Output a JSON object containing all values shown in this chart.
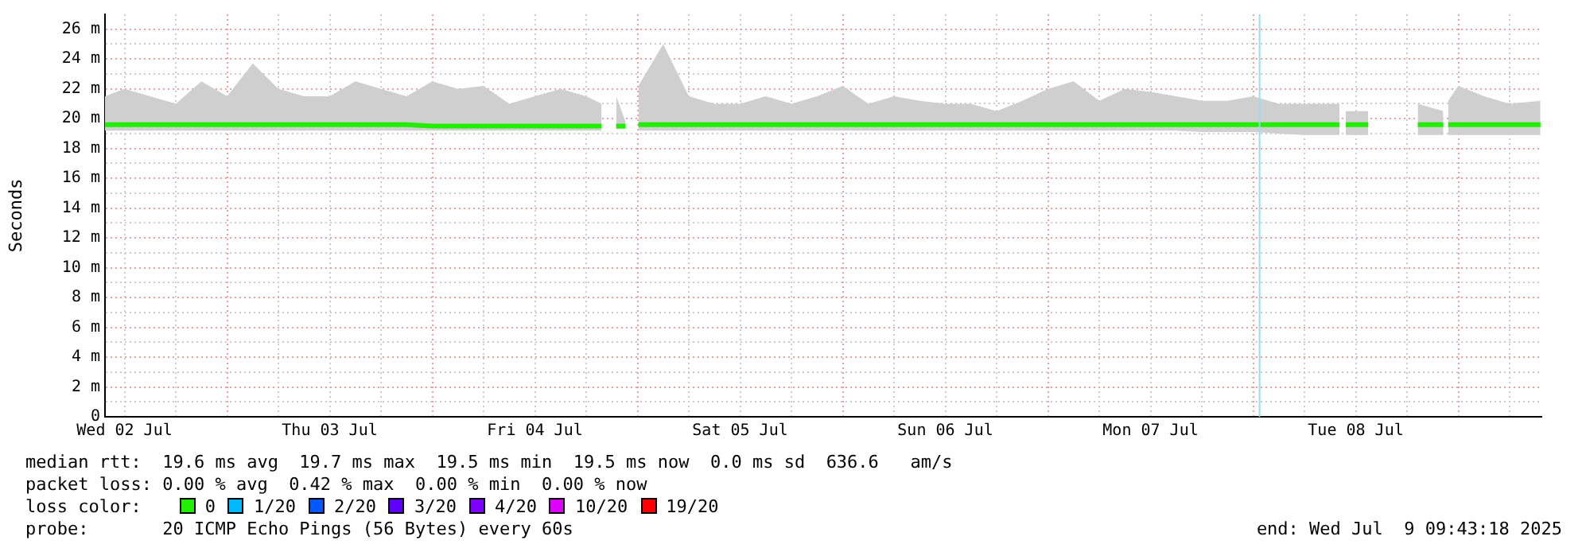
{
  "chart_data": {
    "type": "line",
    "ylabel": "Seconds",
    "x": [
      "2025-07-02T09:43",
      "2025-07-02T12:00",
      "2025-07-02T15:00",
      "2025-07-02T18:00",
      "2025-07-02T21:00",
      "2025-07-03T00:00",
      "2025-07-03T03:00",
      "2025-07-03T06:00",
      "2025-07-03T09:00",
      "2025-07-03T12:00",
      "2025-07-03T15:00",
      "2025-07-03T18:00",
      "2025-07-03T21:00",
      "2025-07-04T00:00",
      "2025-07-04T03:00",
      "2025-07-04T06:00",
      "2025-07-04T09:00",
      "2025-07-04T12:00",
      "2025-07-04T15:00",
      "2025-07-04T18:00",
      "2025-07-04T19:48",
      "2025-07-04T20:40",
      "2025-07-04T21:30",
      "2025-07-04T22:36",
      "2025-07-04T23:20",
      "2025-07-05T00:06",
      "2025-07-05T03:00",
      "2025-07-05T06:00",
      "2025-07-05T09:00",
      "2025-07-05T12:00",
      "2025-07-05T15:00",
      "2025-07-05T18:00",
      "2025-07-05T21:00",
      "2025-07-06T00:00",
      "2025-07-06T03:00",
      "2025-07-06T06:00",
      "2025-07-06T09:00",
      "2025-07-06T12:00",
      "2025-07-06T15:00",
      "2025-07-06T18:00",
      "2025-07-06T21:00",
      "2025-07-07T00:00",
      "2025-07-07T03:00",
      "2025-07-07T06:00",
      "2025-07-07T09:00",
      "2025-07-07T12:00",
      "2025-07-07T15:00",
      "2025-07-07T18:00",
      "2025-07-07T21:00",
      "2025-07-08T00:00",
      "2025-07-08T03:00",
      "2025-07-08T06:00",
      "2025-07-08T09:00",
      "2025-07-08T10:06",
      "2025-07-08T10:28",
      "2025-07-08T10:50",
      "2025-07-08T13:27",
      "2025-07-08T16:00",
      "2025-07-08T19:15",
      "2025-07-08T22:14",
      "2025-07-08T22:30",
      "2025-07-08T22:48",
      "2025-07-09T00:00",
      "2025-07-09T03:00",
      "2025-07-09T06:00",
      "2025-07-09T09:36"
    ],
    "series": [
      {
        "name": "0",
        "color": "#22ee00",
        "values": [
          19.6,
          19.6,
          19.6,
          19.6,
          19.6,
          19.6,
          19.6,
          19.6,
          19.6,
          19.6,
          19.6,
          19.6,
          19.6,
          19.5,
          19.5,
          19.5,
          19.5,
          19.5,
          19.5,
          19.5,
          19.5,
          null,
          19.5,
          19.5,
          null,
          19.6,
          19.6,
          19.6,
          19.6,
          19.6,
          19.6,
          19.6,
          19.6,
          19.6,
          19.6,
          19.6,
          19.6,
          19.6,
          19.6,
          19.6,
          19.6,
          19.6,
          19.6,
          19.6,
          19.6,
          19.6,
          19.6,
          19.6,
          19.6,
          19.6,
          19.6,
          19.6,
          19.6,
          19.6,
          null,
          19.6,
          19.6,
          null,
          19.6,
          19.6,
          null,
          19.6,
          19.6,
          19.6,
          19.6,
          19.6
        ],
        "lower": [
          19.2,
          19.2,
          19.2,
          19.2,
          19.2,
          19.2,
          19.2,
          19.2,
          19.2,
          19.2,
          19.2,
          19.2,
          19.2,
          19.2,
          19.2,
          19.2,
          19.2,
          19.2,
          19.2,
          19.2,
          19.2,
          null,
          19.3,
          19.3,
          null,
          19.2,
          19.2,
          19.2,
          19.2,
          19.2,
          19.2,
          19.2,
          19.2,
          19.2,
          19.2,
          19.2,
          19.2,
          19.2,
          19.2,
          19.2,
          19.2,
          19.2,
          19.2,
          19.2,
          19.2,
          19.2,
          19.2,
          19.1,
          19.1,
          19.1,
          19,
          18.9,
          18.9,
          18.9,
          null,
          18.9,
          18.9,
          null,
          18.9,
          18.9,
          null,
          18.9,
          18.9,
          18.9,
          18.9,
          18.9
        ],
        "upper": [
          21.5,
          22,
          21.5,
          21,
          22.5,
          21.5,
          23.7,
          22,
          21.5,
          21.5,
          22.5,
          22,
          21.5,
          22.5,
          22,
          22.2,
          21,
          21.5,
          22,
          21.5,
          21,
          null,
          21.5,
          19.8,
          null,
          22.2,
          25,
          21.5,
          21,
          21,
          21.5,
          21,
          21.5,
          22.2,
          21,
          21.5,
          21.2,
          21,
          21,
          20.5,
          21.2,
          22,
          22.5,
          21.2,
          22,
          21.8,
          21.5,
          21.2,
          21.2,
          21.5,
          21,
          21,
          21,
          21,
          null,
          20.5,
          20.5,
          null,
          21,
          20.5,
          null,
          21.2,
          22.2,
          21.5,
          21,
          21.2
        ]
      },
      {
        "name": "1/20",
        "color": "#00b8ff",
        "values": [
          null,
          null,
          null,
          null,
          null,
          null,
          null,
          null,
          null,
          null,
          null,
          null,
          null,
          null,
          null,
          null,
          null,
          null,
          null,
          null,
          null,
          null,
          null,
          null,
          null,
          null,
          null,
          null,
          null,
          null,
          null,
          null,
          null,
          null,
          null,
          null,
          null,
          null,
          null,
          null,
          null,
          null,
          null,
          null,
          null,
          null,
          null,
          null,
          null,
          null,
          null,
          null,
          null,
          null,
          null,
          null,
          null,
          null,
          null,
          null,
          null,
          null,
          null,
          null,
          null,
          null
        ]
      },
      {
        "name": "2/20",
        "color": "#0059ff",
        "values": [
          null,
          null,
          null,
          null,
          null,
          null,
          null,
          null,
          null,
          null,
          null,
          null,
          null,
          null,
          null,
          null,
          null,
          null,
          null,
          null,
          null,
          null,
          null,
          null,
          null,
          null,
          null,
          null,
          null,
          null,
          null,
          null,
          null,
          null,
          null,
          null,
          null,
          null,
          null,
          null,
          null,
          null,
          null,
          null,
          null,
          null,
          null,
          null,
          null,
          null,
          null,
          null,
          null,
          null,
          null,
          null,
          null,
          null,
          null,
          null,
          null,
          null,
          null,
          null,
          null,
          null
        ]
      },
      {
        "name": "3/20",
        "color": "#5e00ff",
        "values": [
          null,
          null,
          null,
          null,
          null,
          null,
          null,
          null,
          null,
          null,
          null,
          null,
          null,
          null,
          null,
          null,
          null,
          null,
          null,
          null,
          null,
          null,
          null,
          null,
          null,
          null,
          null,
          null,
          null,
          null,
          null,
          null,
          null,
          null,
          null,
          null,
          null,
          null,
          null,
          null,
          null,
          null,
          null,
          null,
          null,
          null,
          null,
          null,
          null,
          null,
          null,
          null,
          null,
          null,
          null,
          null,
          null,
          null,
          null,
          null,
          null,
          null,
          null,
          null,
          null,
          null
        ]
      },
      {
        "name": "4/20",
        "color": "#7e00ff",
        "values": [
          null,
          null,
          null,
          null,
          null,
          null,
          null,
          null,
          null,
          null,
          null,
          null,
          null,
          null,
          null,
          null,
          null,
          null,
          null,
          null,
          null,
          null,
          null,
          null,
          null,
          null,
          null,
          null,
          null,
          null,
          null,
          null,
          null,
          null,
          null,
          null,
          null,
          null,
          null,
          null,
          null,
          null,
          null,
          null,
          null,
          null,
          null,
          null,
          null,
          null,
          null,
          null,
          null,
          null,
          null,
          null,
          null,
          null,
          null,
          null,
          null,
          null,
          null,
          null,
          null,
          null
        ]
      },
      {
        "name": "10/20",
        "color": "#dd00ff",
        "values": [
          null,
          null,
          null,
          null,
          null,
          null,
          null,
          null,
          null,
          null,
          null,
          null,
          null,
          null,
          null,
          null,
          null,
          null,
          null,
          null,
          null,
          null,
          null,
          null,
          null,
          null,
          null,
          null,
          null,
          null,
          null,
          null,
          null,
          null,
          null,
          null,
          null,
          null,
          null,
          null,
          null,
          null,
          null,
          null,
          null,
          null,
          null,
          null,
          null,
          null,
          null,
          null,
          null,
          null,
          null,
          null,
          null,
          null,
          null,
          null,
          null,
          null,
          null,
          null,
          null,
          null
        ]
      },
      {
        "name": "19/20",
        "color": "#ff0000",
        "values": [
          null,
          null,
          null,
          null,
          null,
          null,
          null,
          null,
          null,
          null,
          null,
          null,
          null,
          null,
          null,
          null,
          null,
          null,
          null,
          null,
          null,
          null,
          null,
          null,
          null,
          null,
          null,
          null,
          null,
          null,
          null,
          null,
          null,
          null,
          null,
          null,
          null,
          null,
          null,
          null,
          null,
          null,
          null,
          null,
          null,
          null,
          null,
          null,
          null,
          null,
          null,
          null,
          null,
          null,
          null,
          null,
          null,
          null,
          null,
          null,
          null,
          null,
          null,
          null,
          null,
          null
        ]
      }
    ],
    "xlim": [
      "2025-07-02T09:43",
      "2025-07-09T09:43"
    ],
    "xticks": [
      {
        "value": "2025-07-02T12:00",
        "label": "Wed 02 Jul"
      },
      {
        "value": "2025-07-02T18:00",
        "label": null
      },
      {
        "value": "2025-07-03T00:00",
        "label": null
      },
      {
        "value": "2025-07-03T06:00",
        "label": null
      },
      {
        "value": "2025-07-03T12:00",
        "label": "Thu 03 Jul"
      },
      {
        "value": "2025-07-03T18:00",
        "label": null
      },
      {
        "value": "2025-07-04T00:00",
        "label": null
      },
      {
        "value": "2025-07-04T06:00",
        "label": null
      },
      {
        "value": "2025-07-04T12:00",
        "label": "Fri 04 Jul"
      },
      {
        "value": "2025-07-04T18:00",
        "label": null
      },
      {
        "value": "2025-07-05T00:00",
        "label": null
      },
      {
        "value": "2025-07-05T06:00",
        "label": null
      },
      {
        "value": "2025-07-05T12:00",
        "label": "Sat 05 Jul"
      },
      {
        "value": "2025-07-05T18:00",
        "label": null
      },
      {
        "value": "2025-07-06T00:00",
        "label": null
      },
      {
        "value": "2025-07-06T06:00",
        "label": null
      },
      {
        "value": "2025-07-06T12:00",
        "label": "Sun 06 Jul"
      },
      {
        "value": "2025-07-06T18:00",
        "label": null
      },
      {
        "value": "2025-07-07T00:00",
        "label": null
      },
      {
        "value": "2025-07-07T06:00",
        "label": null
      },
      {
        "value": "2025-07-07T12:00",
        "label": "Mon 07 Jul"
      },
      {
        "value": "2025-07-07T18:00",
        "label": null
      },
      {
        "value": "2025-07-08T00:00",
        "label": null
      },
      {
        "value": "2025-07-08T06:00",
        "label": null
      },
      {
        "value": "2025-07-08T12:00",
        "label": "Tue 08 Jul"
      },
      {
        "value": "2025-07-08T18:00",
        "label": null
      },
      {
        "value": "2025-07-09T00:00",
        "label": null
      },
      {
        "value": "2025-07-09T06:00",
        "label": null
      }
    ],
    "ylim": [
      0,
      27
    ],
    "yticks": [
      0,
      {
        "value": 1,
        "label": null
      },
      {
        "value": 2,
        "label": "2 m"
      },
      {
        "value": 3,
        "label": null
      },
      {
        "value": 4,
        "label": "4 m"
      },
      {
        "value": 5,
        "label": null
      },
      {
        "value": 6,
        "label": "6 m"
      },
      {
        "value": 7,
        "label": null
      },
      {
        "value": 8,
        "label": "8 m"
      },
      {
        "value": 9,
        "label": null
      },
      {
        "value": 10,
        "label": "10 m"
      },
      {
        "value": 11,
        "label": null
      },
      {
        "value": 12,
        "label": "12 m"
      },
      {
        "value": 13,
        "label": null
      },
      {
        "value": 14,
        "label": "14 m"
      },
      {
        "value": 15,
        "label": null
      },
      {
        "value": 16,
        "label": "16 m"
      },
      {
        "value": 17,
        "label": null
      },
      {
        "value": 18,
        "label": "18 m"
      },
      {
        "value": 19,
        "label": null
      },
      {
        "value": 20,
        "label": "20 m"
      },
      {
        "value": 21,
        "label": null
      },
      {
        "value": 22,
        "label": "22 m"
      },
      {
        "value": 23,
        "label": null
      },
      {
        "value": 24,
        "label": "24 m"
      },
      {
        "value": 25,
        "label": null
      },
      {
        "value": 26,
        "label": "26 m"
      }
    ],
    "ref_lines": [
      {
        "axis": "x",
        "value": "2025-07-08T00:45",
        "color": "#99ddee"
      }
    ],
    "grid": true,
    "legend": "bottom",
    "marker": "none",
    "line_style": "solid",
    "annotations": [
      "median rtt:  19.6 ms avg  19.7 ms max  19.5 ms min  19.5 ms now  0.0 ms sd  636.6   am/s",
      "packet loss: 0.00 % avg  0.42 % max  0.00 % min  0.00 % now",
      "loss color:",
      "probe:       20 ICMP Echo Pings (56 Bytes) every 60s",
      "end: Wed Jul  9 09:43:18 2025"
    ]
  }
}
